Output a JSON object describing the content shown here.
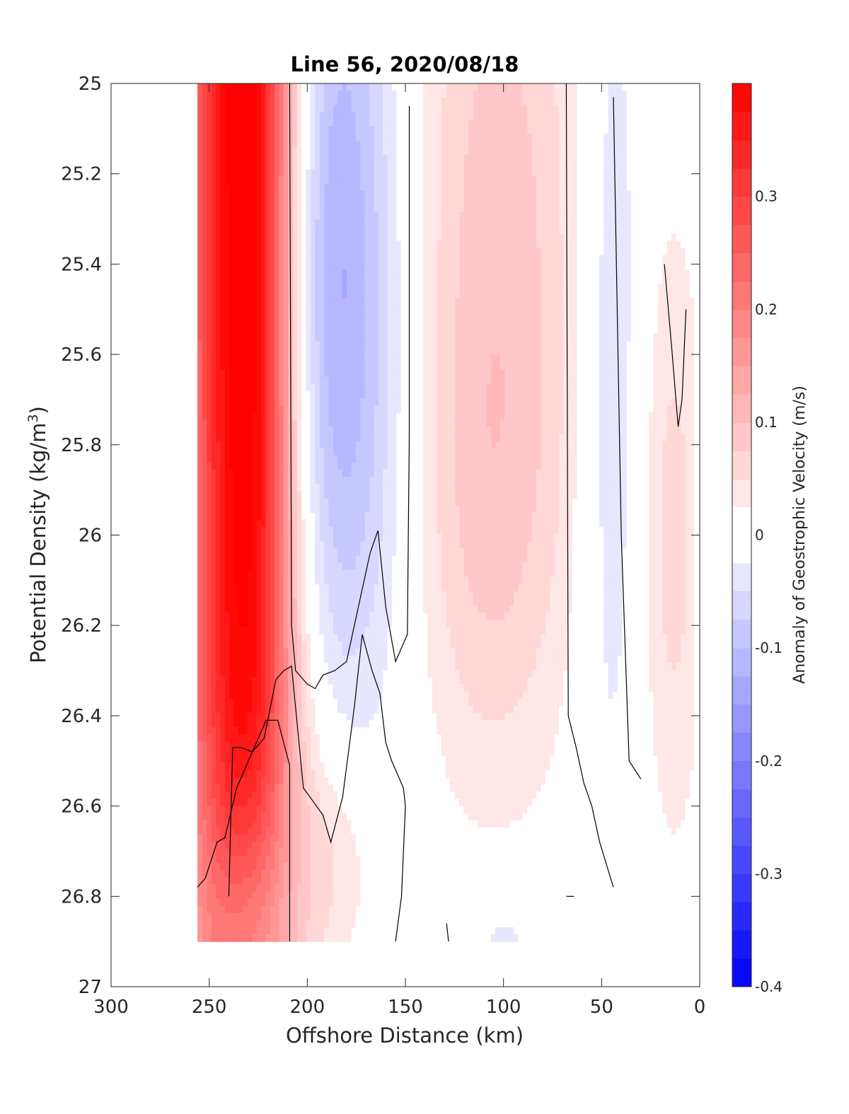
{
  "chart_data": {
    "type": "contourf",
    "title": "Line 56, 2020/08/18",
    "xlabel": "Offshore Distance (km)",
    "ylabel_prefix": "Potential Density (kg/m",
    "ylabel_superscript": "3",
    "ylabel_suffix": ")",
    "colorbar_label": "Anomaly of Geostrophic Velocity (m/s)",
    "xlim": [
      300,
      0
    ],
    "ylim": [
      25,
      27
    ],
    "x_reversed": true,
    "y_reversed": true,
    "grid": false,
    "x_ticks": [
      300,
      250,
      200,
      150,
      100,
      50,
      0
    ],
    "x_tick_labels": [
      "300",
      "250",
      "200",
      "150",
      "100",
      "50",
      "0"
    ],
    "y_ticks": [
      25,
      25.2,
      25.4,
      25.6,
      25.8,
      26,
      26.2,
      26.4,
      26.6,
      26.8,
      27
    ],
    "y_tick_labels": [
      "25",
      "25.2",
      "25.4",
      "25.6",
      "25.8",
      "26",
      "26.2",
      "26.4",
      "26.6",
      "26.8",
      "27"
    ],
    "colorbar": {
      "range": [
        -0.4,
        0.4
      ],
      "level_step": 0.025,
      "ticks": [
        -0.4,
        -0.3,
        -0.2,
        -0.1,
        0,
        0.1,
        0.2,
        0.3
      ],
      "tick_labels": [
        "-0.4",
        "-0.3",
        "-0.2",
        "-0.1",
        "0",
        "0.1",
        "0.2",
        "0.3"
      ],
      "negative_color": "#0000ff",
      "positive_color": "#ff0000",
      "zero_color": "#ffffff"
    },
    "field_x_range": [
      3,
      256
    ],
    "field_y_range": [
      25,
      26.9
    ],
    "features": [
      {
        "name": "red-jet",
        "x": 235,
        "y": 25.0,
        "sx": 20,
        "sy": 3.2,
        "amp": 0.42
      },
      {
        "name": "red-jet-edge",
        "x": 222,
        "y": 25.6,
        "sx": 10,
        "sy": 0.8,
        "amp": 0.06
      },
      {
        "name": "blue-core-upper",
        "x": 188,
        "y": 25.25,
        "sx": 22,
        "sy": 0.6,
        "amp": -0.12
      },
      {
        "name": "blue-core-mid",
        "x": 180,
        "y": 25.9,
        "sx": 30,
        "sy": 0.5,
        "amp": -0.05
      },
      {
        "name": "red-band-middle",
        "x": 103,
        "y": 25.3,
        "sx": 32,
        "sy": 0.75,
        "amp": 0.085
      },
      {
        "name": "red-band-lower",
        "x": 112,
        "y": 26.0,
        "sx": 30,
        "sy": 0.4,
        "amp": 0.04
      },
      {
        "name": "blue-band-east",
        "x": 45,
        "y": 25.6,
        "sx": 12,
        "sy": 0.8,
        "amp": -0.055
      },
      {
        "name": "red-band-east",
        "x": 14,
        "y": 26.0,
        "sx": 12,
        "sy": 0.5,
        "amp": 0.06
      },
      {
        "name": "blue-deep-west",
        "x": 232,
        "y": 26.92,
        "sx": 15,
        "sy": 0.22,
        "amp": -0.15
      },
      {
        "name": "red-deep",
        "x": 185,
        "y": 26.72,
        "sx": 14,
        "sy": 0.18,
        "amp": 0.05
      },
      {
        "name": "blue-deep-east",
        "x": 100,
        "y": 26.9,
        "sx": 15,
        "sy": 0.1,
        "amp": -0.04
      },
      {
        "name": "red-deep-east",
        "x": 48,
        "y": 26.72,
        "sx": 8,
        "sy": 0.1,
        "amp": 0.03
      }
    ],
    "zero_contours": [
      [
        [
          256,
          26.78
        ],
        [
          252,
          26.76
        ],
        [
          246,
          26.68
        ],
        [
          242,
          26.67
        ],
        [
          236,
          26.56
        ],
        [
          228,
          26.48
        ],
        [
          221,
          26.41
        ],
        [
          215,
          26.41
        ],
        [
          209,
          26.51
        ],
        [
          209,
          26.9
        ]
      ],
      [
        [
          209,
          25.0
        ],
        [
          208,
          26.2
        ],
        [
          206,
          26.3
        ],
        [
          200,
          26.33
        ],
        [
          196,
          26.34
        ],
        [
          192,
          26.31
        ],
        [
          186,
          26.3
        ],
        [
          180,
          26.28
        ],
        [
          174,
          26.16
        ],
        [
          168,
          26.04
        ],
        [
          164,
          25.99
        ],
        [
          160,
          26.16
        ],
        [
          155,
          26.28
        ],
        [
          149,
          26.22
        ],
        [
          148,
          25.78
        ],
        [
          148,
          25.05
        ]
      ],
      [
        [
          155,
          26.9
        ],
        [
          152,
          26.8
        ],
        [
          150,
          26.6
        ],
        [
          151,
          26.56
        ],
        [
          154,
          26.53
        ],
        [
          157,
          26.5
        ],
        [
          160,
          26.46
        ],
        [
          163,
          26.35
        ],
        [
          167,
          26.3
        ],
        [
          172,
          26.22
        ],
        [
          176,
          26.38
        ],
        [
          182,
          26.58
        ],
        [
          188,
          26.68
        ],
        [
          192,
          26.62
        ],
        [
          197,
          26.59
        ],
        [
          202,
          26.56
        ],
        [
          208,
          26.29
        ],
        [
          212,
          26.3
        ],
        [
          216,
          26.32
        ],
        [
          222,
          26.45
        ],
        [
          228,
          26.48
        ],
        [
          234,
          26.47
        ],
        [
          238,
          26.47
        ],
        [
          240,
          26.8
        ]
      ]
    ],
    "contour_x_mode_note": "",
    "zero_contours_east": [
      [
        [
          68,
          25.0
        ],
        [
          67,
          26.4
        ],
        [
          63,
          26.47
        ],
        [
          59,
          26.55
        ],
        [
          55,
          26.6
        ],
        [
          51,
          26.68
        ],
        [
          44,
          26.78
        ]
      ],
      [
        [
          44,
          25.03
        ],
        [
          40,
          26.0
        ],
        [
          36,
          26.5
        ],
        [
          30,
          26.54
        ]
      ],
      [
        [
          18,
          25.4
        ],
        [
          14,
          25.6
        ],
        [
          11,
          25.76
        ],
        [
          9,
          25.7
        ],
        [
          7,
          25.5
        ]
      ],
      [
        [
          129,
          26.86
        ],
        [
          128,
          26.9
        ]
      ],
      [
        [
          68,
          26.8
        ],
        [
          64,
          26.8
        ]
      ]
    ]
  }
}
